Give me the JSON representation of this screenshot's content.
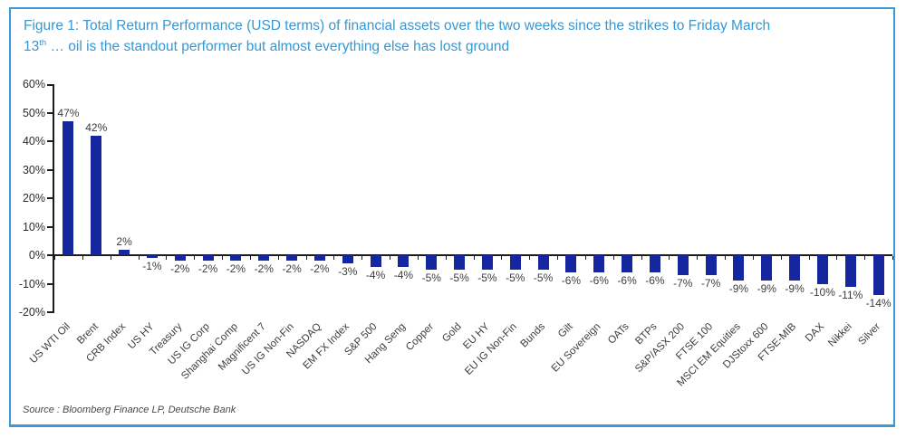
{
  "figure": {
    "title_line1": "Figure 1: Total Return Performance (USD terms) of financial assets over the two weeks since the strikes to Friday March",
    "title_line2_num": "13",
    "title_line2_sup": "th",
    "title_line2_rest": " … oil is the standout performer but almost everything else has lost ground",
    "source": "Source : Bloomberg Finance LP, Deutsche Bank",
    "accent_color": "#3a9ad5"
  },
  "chart_data": {
    "type": "bar",
    "title": "Figure 1: Total Return Performance (USD terms) of financial assets over the two weeks since the strikes to Friday March 13th … oil is the standout performer but almost everything else has lost ground",
    "categories": [
      "US WTI Oil",
      "Brent",
      "CRB Index",
      "US HY",
      "Treasury",
      "US IG Corp",
      "Shanghai Comp",
      "Magnificent 7",
      "US IG Non-Fin",
      "NASDAQ",
      "EM FX Index",
      "S&P 500",
      "Hang Seng",
      "Copper",
      "Gold",
      "EU HY",
      "EU IG Non-Fin",
      "Bunds",
      "Gilt",
      "EU Sovereign",
      "OATs",
      "BTPs",
      "S&P/ASX 200",
      "FTSE 100",
      "MSCI EM Equities",
      "DJStoxx 600",
      "FTSE-MIB",
      "DAX",
      "Nikkei",
      "Silver"
    ],
    "values": [
      47,
      42,
      2,
      -1,
      -2,
      -2,
      -2,
      -2,
      -2,
      -2,
      -3,
      -4,
      -4,
      -5,
      -5,
      -5,
      -5,
      -5,
      -6,
      -6,
      -6,
      -6,
      -7,
      -7,
      -9,
      -9,
      -9,
      -10,
      -11,
      -14
    ],
    "data_label_suffix": "%",
    "xlabel": "",
    "ylabel": "",
    "ylim": [
      -20,
      60
    ],
    "y_tick_values": [
      60,
      50,
      40,
      30,
      20,
      10,
      0,
      -10,
      -20
    ],
    "y_tick_labels": [
      "60%",
      "50%",
      "40%",
      "30%",
      "20%",
      "10%",
      "0%",
      "-10%",
      "-20%"
    ],
    "grid": false,
    "legend": false,
    "bar_color": "#16269e",
    "source": "Source : Bloomberg Finance LP, Deutsche Bank"
  }
}
